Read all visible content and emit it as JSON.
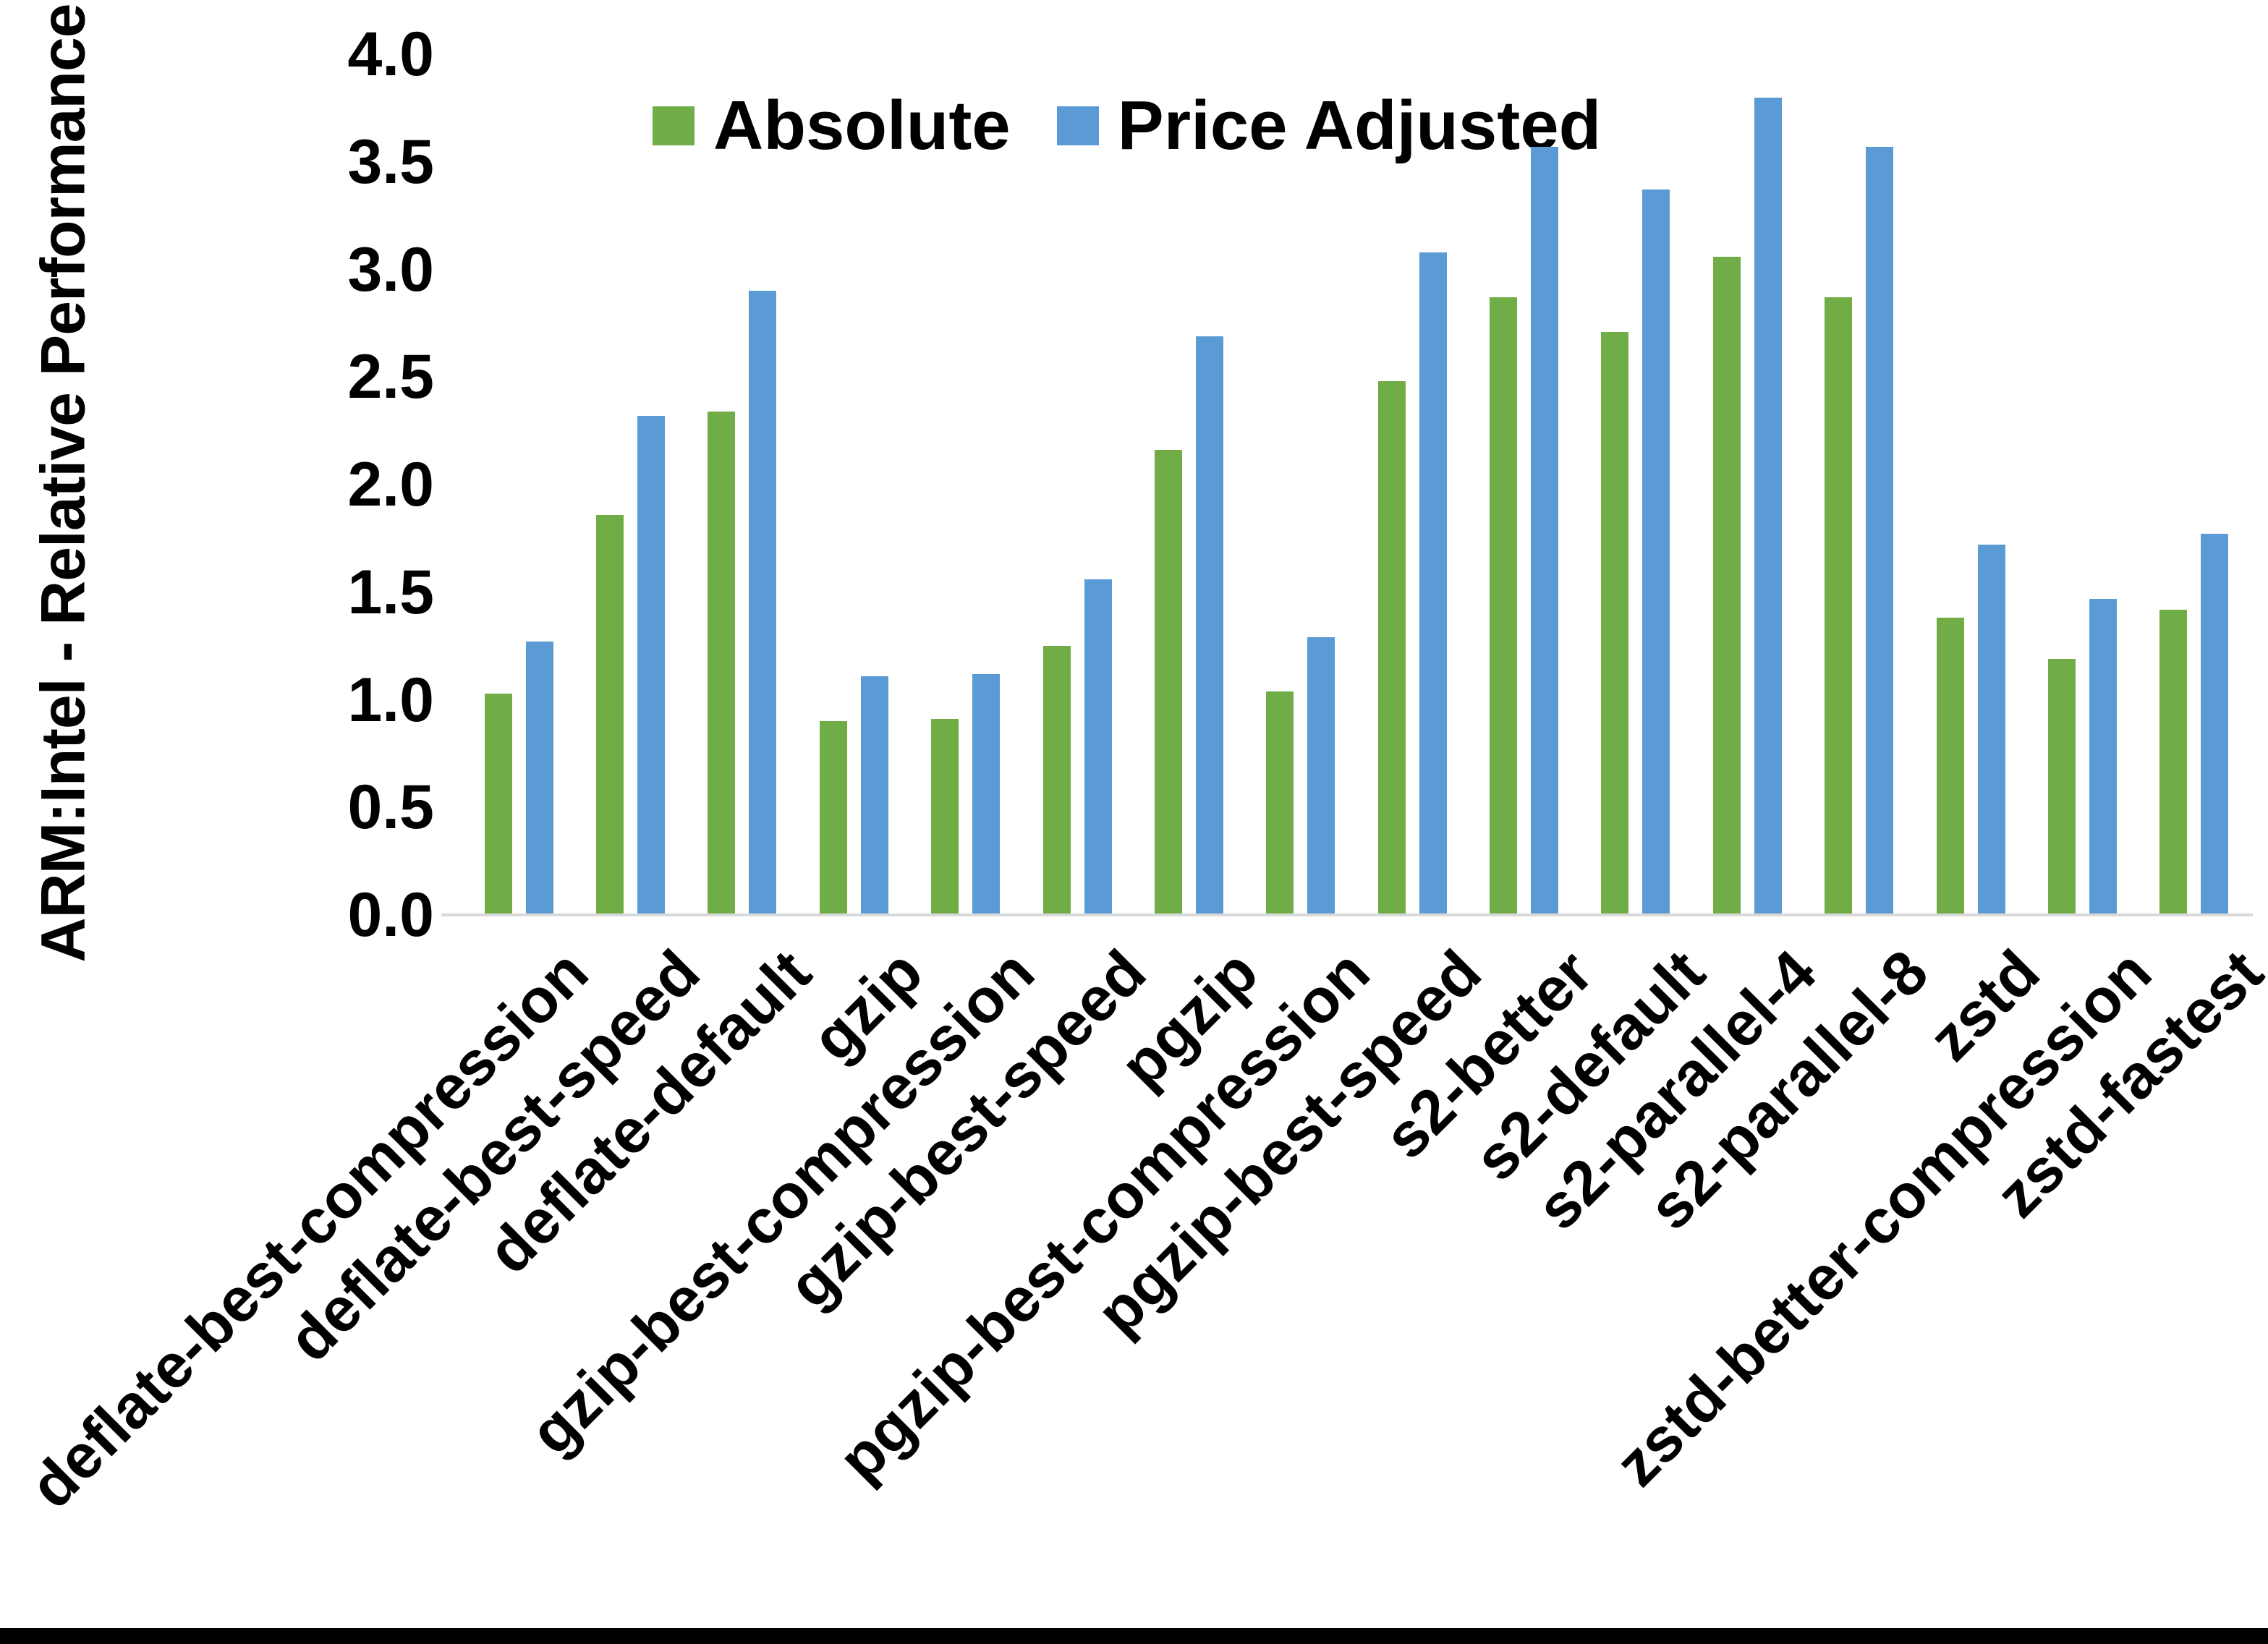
{
  "page": {
    "background": "#FFFFFF",
    "bottom_bar_color": "#000000"
  },
  "chart_data": {
    "type": "bar",
    "title": "",
    "xlabel": "",
    "ylabel": "ARM:Intel - Relative Performance",
    "ylim": [
      0.0,
      4.0
    ],
    "ytick_step": 0.5,
    "yticks": [
      "0.0",
      "0.5",
      "1.0",
      "1.5",
      "2.0",
      "2.5",
      "3.0",
      "3.5",
      "4.0"
    ],
    "grid": false,
    "legend_position": "top-center",
    "axis_line_color": "#D9D9D9",
    "text_color": "#000000",
    "categories": [
      "deflate-best-compression",
      "deflate-best-speed",
      "deflate-default",
      "gzip",
      "gzip-best-compression",
      "gzip-best-speed",
      "pgzip",
      "pgzip-best-compression",
      "pgzip-best-speed",
      "s2-better",
      "s2-default",
      "s2-parallel-4",
      "s2-parallel-8",
      "zstd",
      "zstd-better-compression",
      "zstd-fastest"
    ],
    "series": [
      {
        "name": "Absolute",
        "color": "#70AD47",
        "values": [
          1.03,
          1.86,
          2.34,
          0.9,
          0.91,
          1.25,
          2.16,
          1.04,
          2.48,
          2.87,
          2.71,
          3.06,
          2.87,
          1.38,
          1.19,
          1.42
        ]
      },
      {
        "name": "Price Adjusted",
        "color": "#5B9BD5",
        "values": [
          1.27,
          2.32,
          2.9,
          1.11,
          1.12,
          1.56,
          2.69,
          1.29,
          3.08,
          3.57,
          3.37,
          3.8,
          3.57,
          1.72,
          1.47,
          1.77
        ]
      }
    ]
  }
}
